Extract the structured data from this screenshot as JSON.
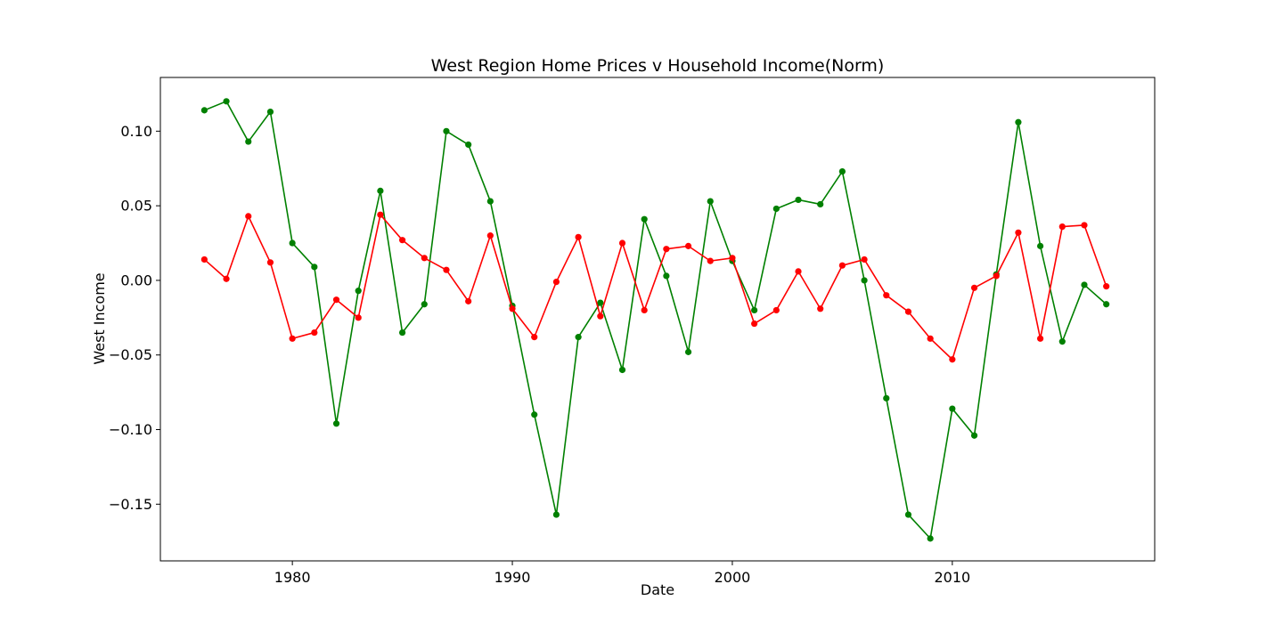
{
  "chart_data": {
    "type": "line",
    "title": "West Region Home Prices v Household Income(Norm)",
    "xlabel": "Date",
    "ylabel": "West Income",
    "xlim": [
      1974,
      2019.2
    ],
    "ylim": [
      -0.188,
      0.136
    ],
    "x_ticks": [
      1980,
      1990,
      2000,
      2010
    ],
    "y_ticks": [
      0.1,
      0.05,
      0.0,
      -0.05,
      -0.1,
      -0.15
    ],
    "y_tick_labels": [
      "0.10",
      "0.05",
      "0.00",
      "−0.05",
      "−0.10",
      "−0.15"
    ],
    "x_tick_labels": [
      "1980",
      "1990",
      "2000",
      "2010"
    ],
    "grid": false,
    "legend": "none",
    "x": [
      1976,
      1977,
      1978,
      1979,
      1980,
      1981,
      1982,
      1983,
      1984,
      1985,
      1986,
      1987,
      1988,
      1989,
      1990,
      1991,
      1992,
      1993,
      1994,
      1995,
      1996,
      1997,
      1998,
      1999,
      2000,
      2001,
      2002,
      2003,
      2004,
      2005,
      2006,
      2007,
      2008,
      2009,
      2010,
      2011,
      2012,
      2013,
      2014,
      2015,
      2016,
      2017
    ],
    "series": [
      {
        "color": "#008000",
        "values": [
          0.114,
          0.12,
          0.093,
          0.113,
          0.025,
          0.009,
          -0.096,
          -0.007,
          0.06,
          -0.035,
          -0.016,
          0.1,
          0.091,
          0.053,
          -0.017,
          -0.09,
          -0.157,
          -0.038,
          -0.015,
          -0.06,
          0.041,
          0.003,
          -0.048,
          0.053,
          0.013,
          -0.02,
          0.048,
          0.054,
          0.051,
          0.073,
          0.0,
          -0.079,
          -0.157,
          -0.173,
          -0.086,
          -0.104,
          0.004,
          0.106,
          0.023,
          -0.041,
          -0.003,
          -0.016
        ]
      },
      {
        "color": "#ff0000",
        "values": [
          0.014,
          0.001,
          0.043,
          0.012,
          -0.039,
          -0.035,
          -0.013,
          -0.025,
          0.044,
          0.027,
          0.015,
          0.007,
          -0.014,
          0.03,
          -0.019,
          -0.038,
          -0.001,
          0.029,
          -0.024,
          0.025,
          -0.02,
          0.021,
          0.023,
          0.013,
          0.015,
          -0.029,
          -0.02,
          0.006,
          -0.019,
          0.01,
          0.014,
          -0.01,
          -0.021,
          -0.039,
          -0.053,
          -0.005,
          0.003,
          0.032,
          -0.039,
          0.036,
          0.037,
          -0.004
        ]
      }
    ]
  }
}
